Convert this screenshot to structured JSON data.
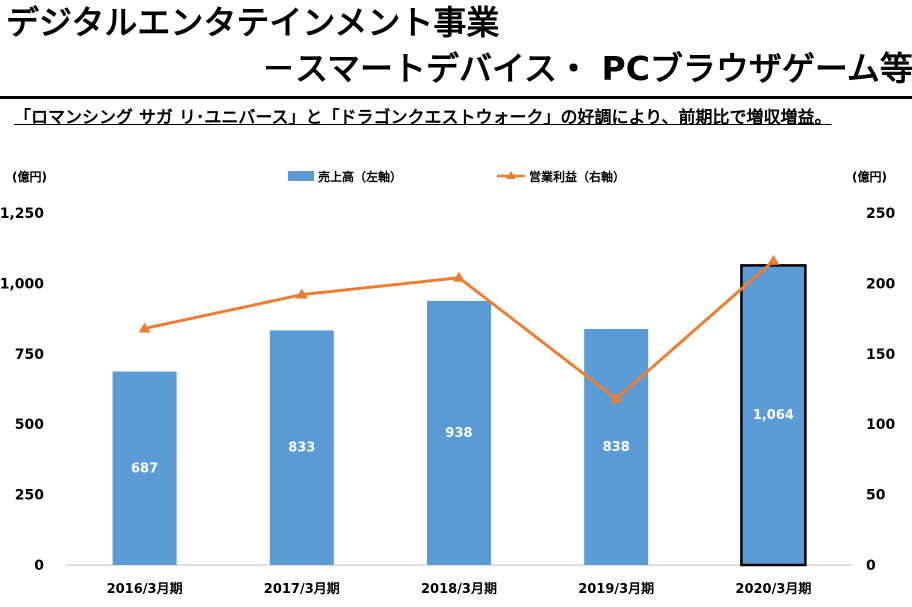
{
  "header": {
    "title_line1": "デジタルエンタテインメント事業",
    "title_line2": "－スマートデバイス・ PCブラウザゲーム等",
    "subtitle": "「ロマンシング サガ リ･ユニバース」と「ドラゴンクエストウォーク」の好調により、前期比で増収増益。"
  },
  "colors": {
    "bar": "#5b9bd5",
    "line": "#ed7d31",
    "highlight_border": "#000000"
  },
  "chart_data": {
    "type": "bar",
    "categories": [
      "2016/3月期",
      "2017/3月期",
      "2018/3月期",
      "2019/3月期",
      "2020/3月期"
    ],
    "series": [
      {
        "name": "売上高（左軸）",
        "type": "bar",
        "axis": "left",
        "values": [
          687,
          833,
          938,
          838,
          1064
        ]
      },
      {
        "name": "営業利益（右軸）",
        "type": "line",
        "axis": "right",
        "values": [
          168,
          192,
          204,
          118,
          216
        ]
      }
    ],
    "data_labels": [
      "687",
      "833",
      "938",
      "838",
      "1,064"
    ],
    "left_axis": {
      "unit": "(億円)",
      "ylim": [
        0,
        1250
      ],
      "ticks": [
        "0",
        "250",
        "500",
        "750",
        "1,000",
        "1,250"
      ]
    },
    "right_axis": {
      "unit": "(億円)",
      "ylim": [
        0,
        250
      ],
      "ticks": [
        "0",
        "50",
        "100",
        "150",
        "200",
        "250"
      ]
    },
    "legend_placement": "top-center",
    "highlighted_category": "2020/3月期",
    "grid": false
  }
}
